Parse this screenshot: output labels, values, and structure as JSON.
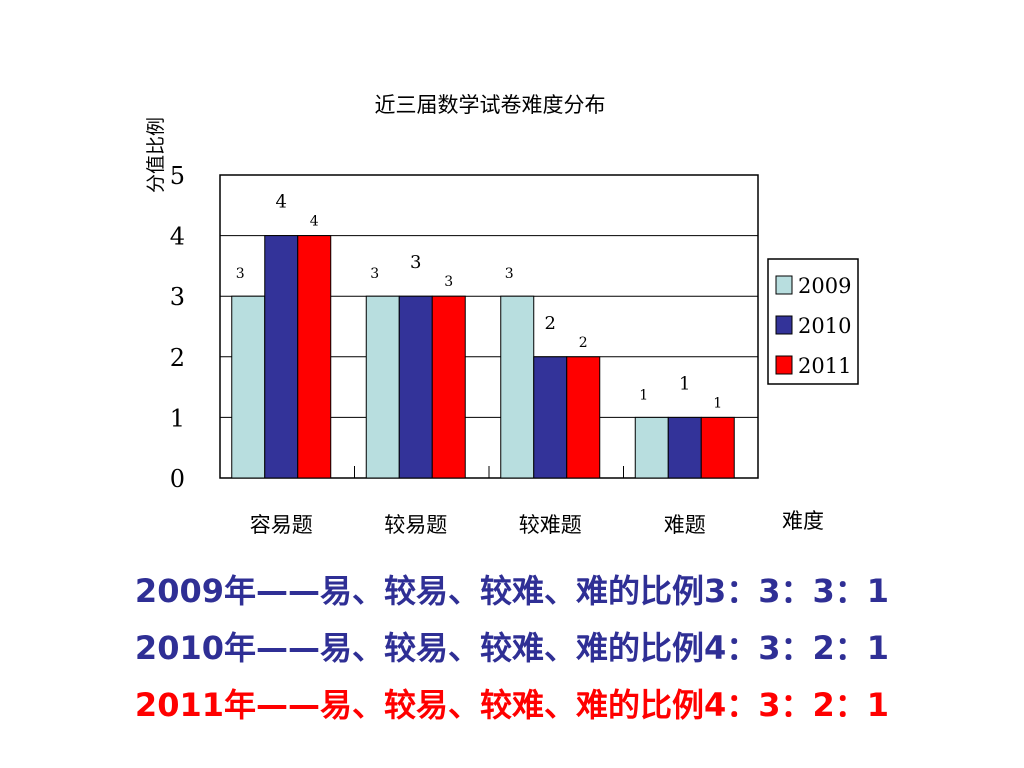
{
  "chart_data": {
    "type": "bar",
    "title": "近三届数学试卷难度分布",
    "ylabel": "分值比例",
    "xlabel": "难度",
    "categories": [
      "容易题",
      "较易题",
      "较难题",
      "难题"
    ],
    "series": [
      {
        "name": "2009",
        "values": [
          3,
          3,
          3,
          1
        ],
        "color": "#b8dedf"
      },
      {
        "name": "2010",
        "values": [
          4,
          3,
          2,
          1
        ],
        "color": "#333399"
      },
      {
        "name": "2011",
        "values": [
          4,
          3,
          2,
          1
        ],
        "color": "#ff0000"
      }
    ],
    "ylim": [
      0,
      5
    ],
    "yticks": [
      "0",
      "1",
      "2",
      "3",
      "4",
      "5"
    ],
    "grid": true,
    "legend_position": "right",
    "data_labels": true
  },
  "summary": {
    "line_2009": "2009年——易、较易、较难、难的比例3：3：3：1",
    "line_2010": "2010年——易、较易、较难、难的比例4：3：2：1",
    "line_2011": "2011年——易、较易、较难、难的比例4：3：2：1",
    "color_2009": "#2f2f95",
    "color_2010": "#2f2f95",
    "color_2011": "#ff0000"
  }
}
